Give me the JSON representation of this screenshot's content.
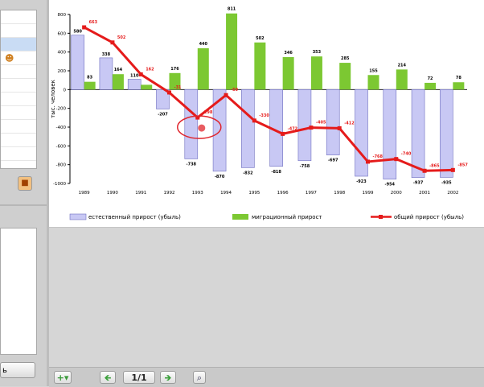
{
  "left_panel": {
    "bottom_button_label": "ь",
    "tool_icon": "presenter-icon"
  },
  "navigation": {
    "add_icon": "add-slide-icon",
    "prev_icon": "arrow-left-icon",
    "page_label": "1/1",
    "next_icon": "arrow-right-icon",
    "zoom_icon": "zoom-icon"
  },
  "colors": {
    "natural_bar": "#c8c8f4",
    "natural_bar_border": "#6e6ec0",
    "migration_bar": "#7cc832",
    "total_line": "#e51b1b",
    "highlight": "#e0252c"
  },
  "chart_data": {
    "type": "bar",
    "ylabel": "тыс. человек",
    "ylim": [
      -1000,
      800
    ],
    "yticks": [
      -1000,
      -800,
      -600,
      -400,
      -200,
      0,
      200,
      400,
      600,
      800
    ],
    "categories": [
      "1989",
      "1990",
      "1991",
      "1992",
      "1993",
      "1994",
      "1995",
      "1996",
      "1997",
      "1998",
      "1999",
      "2000",
      "2001",
      "2002"
    ],
    "series": [
      {
        "name": "естественный прирост (убыль)",
        "type": "bar",
        "values": [
          580,
          338,
          110,
          -207,
          -738,
          -870,
          -832,
          -818,
          -758,
          -697,
          -923,
          -954,
          -937,
          -935
        ],
        "labels": [
          "580",
          "338",
          "110",
          "-207",
          "-738",
          "-870",
          "-832",
          "-818",
          "-758",
          "-697",
          "-923",
          "-954",
          "-937",
          "-935"
        ]
      },
      {
        "name": "миграционный прирост",
        "type": "bar",
        "values": [
          83,
          164,
          51,
          176,
          440,
          811,
          502,
          346,
          353,
          285,
          155,
          214,
          72,
          78
        ],
        "labels": [
          "83",
          "164",
          "",
          "176",
          "440",
          "811",
          "502",
          "346",
          "353",
          "285",
          "155",
          "214",
          "72",
          "78"
        ]
      },
      {
        "name": "общий прирост (убыль)",
        "type": "line",
        "values": [
          663,
          502,
          162,
          -31,
          -298,
          -59,
          -330,
          -472,
          -405,
          -412,
          -768,
          -740,
          -865,
          -857
        ],
        "labels": [
          "663",
          "502",
          "162",
          "-31",
          "-298",
          "-59",
          "-330",
          "-472",
          "-405",
          "-412",
          "-768",
          "-740",
          "-865",
          "-857"
        ]
      }
    ],
    "legend_position": "bottom"
  }
}
